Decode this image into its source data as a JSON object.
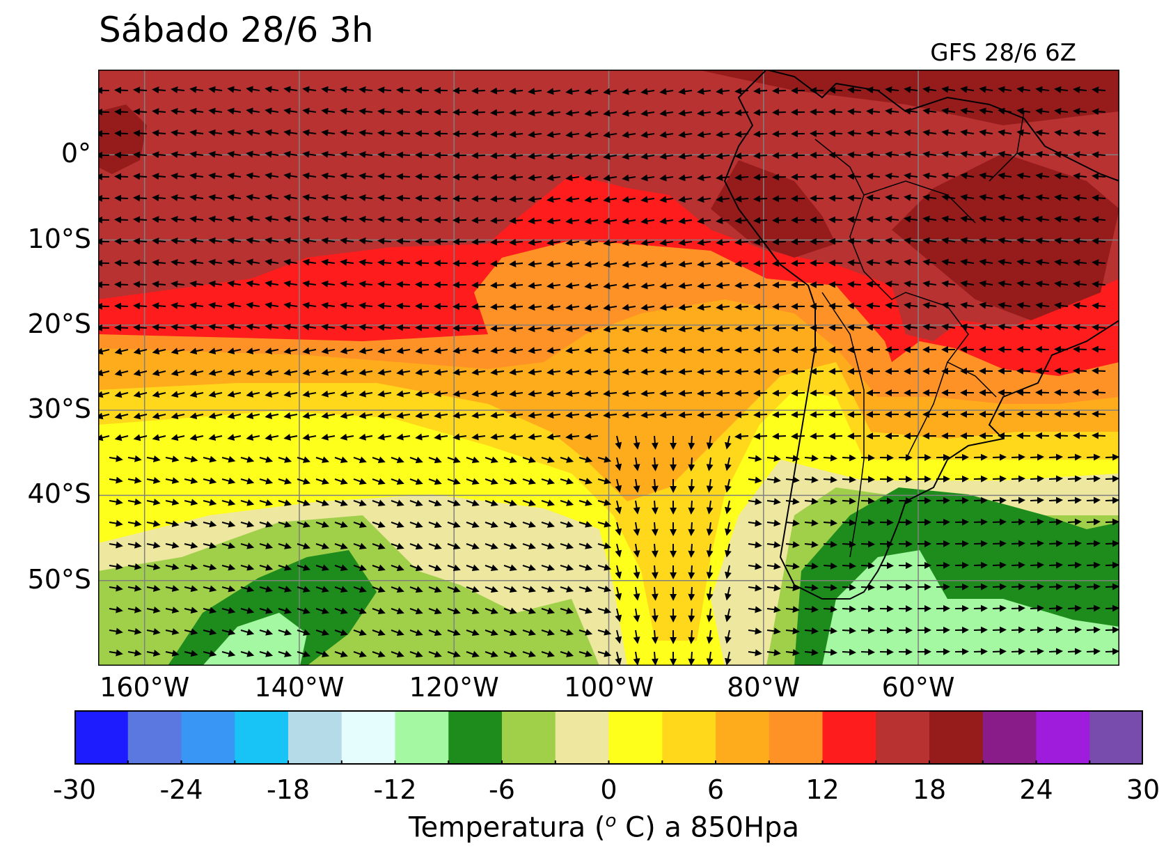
{
  "header": {
    "title": "Sábado 28/6 3h",
    "model_run": "GFS 28/6 6Z"
  },
  "map": {
    "lon_range": [
      -166,
      -34
    ],
    "lat_range": [
      -60,
      10
    ],
    "lat_ticks": [
      {
        "value": 0,
        "label": "0°"
      },
      {
        "value": -10,
        "label": "10°S"
      },
      {
        "value": -20,
        "label": "20°S"
      },
      {
        "value": -30,
        "label": "30°S"
      },
      {
        "value": -40,
        "label": "40°S"
      },
      {
        "value": -50,
        "label": "50°S"
      }
    ],
    "lon_ticks": [
      {
        "value": -160,
        "label": "160°W"
      },
      {
        "value": -140,
        "label": "140°W"
      },
      {
        "value": -120,
        "label": "120°W"
      },
      {
        "value": -100,
        "label": "100°W"
      },
      {
        "value": -80,
        "label": "80°W"
      },
      {
        "value": -60,
        "label": "60°W"
      }
    ],
    "grid": true,
    "field": "temperature at 850 hPa with wind vectors"
  },
  "colorbar": {
    "range": [
      -30,
      30
    ],
    "step": 3,
    "colors": [
      "#1c1cff",
      "#5a78e0",
      "#3a96f5",
      "#18c4f6",
      "#b5dbe8",
      "#e5fdfd",
      "#a4f8a2",
      "#1d8c1d",
      "#a0d04a",
      "#ede7a0",
      "#ffff1c",
      "#ffd81c",
      "#ffac1c",
      "#ff9226",
      "#ff1c1c",
      "#b83232",
      "#961c1c",
      "#8a1c8a",
      "#a01cdc",
      "#784cac"
    ],
    "tick_labels": [
      {
        "value": -30,
        "label": "-30"
      },
      {
        "value": -24,
        "label": "-24"
      },
      {
        "value": -18,
        "label": "-18"
      },
      {
        "value": -12,
        "label": "-12"
      },
      {
        "value": -6,
        "label": "-6"
      },
      {
        "value": 0,
        "label": "0"
      },
      {
        "value": 6,
        "label": "6"
      },
      {
        "value": 12,
        "label": "12"
      },
      {
        "value": 18,
        "label": "18"
      },
      {
        "value": 24,
        "label": "24"
      },
      {
        "value": 30,
        "label": "30"
      }
    ],
    "title": "Temperatura (",
    "title_sup": "o",
    "title_end": " C) a 850Hpa"
  }
}
